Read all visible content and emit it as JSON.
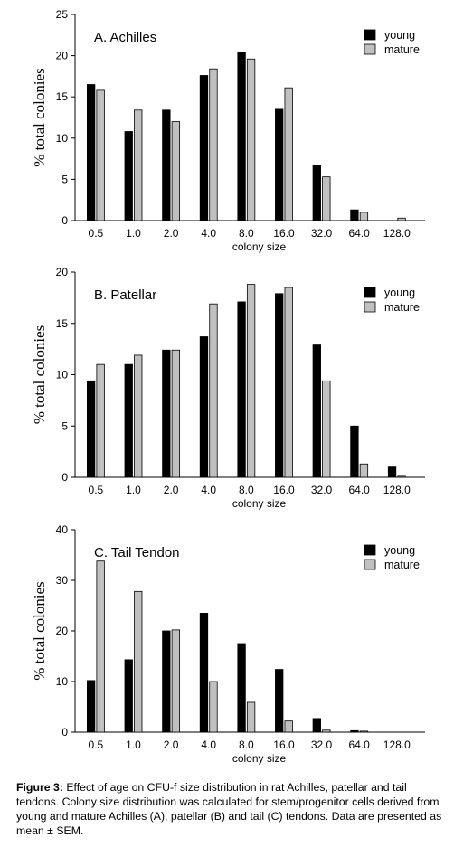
{
  "chart_data": [
    {
      "type": "bar",
      "title": "A. Achilles",
      "ylabel": "% total colonies",
      "xlabel": "colony size",
      "ylim": [
        0,
        25
      ],
      "yticks": [
        0,
        5,
        10,
        15,
        20,
        25
      ],
      "categories": [
        "0.5",
        "1.0",
        "2.0",
        "4.0",
        "8.0",
        "16.0",
        "32.0",
        "64.0",
        "128.0"
      ],
      "series": [
        {
          "name": "young",
          "color": "#000000",
          "values": [
            16.5,
            10.8,
            13.4,
            17.6,
            20.4,
            13.5,
            6.7,
            1.3,
            0
          ]
        },
        {
          "name": "mature",
          "color": "#c0c0c0",
          "values": [
            15.8,
            13.4,
            12.0,
            18.4,
            19.6,
            16.1,
            5.3,
            1.0,
            0.3
          ]
        }
      ],
      "legend": "top-right"
    },
    {
      "type": "bar",
      "title": "B. Patellar",
      "ylabel": "% total colonies",
      "xlabel": "colony size",
      "ylim": [
        0,
        20
      ],
      "yticks": [
        0,
        5,
        10,
        15,
        20
      ],
      "categories": [
        "0.5",
        "1.0",
        "2.0",
        "4.0",
        "8.0",
        "16.0",
        "32.0",
        "64.0",
        "128.0"
      ],
      "series": [
        {
          "name": "young",
          "color": "#000000",
          "values": [
            9.4,
            11.0,
            12.4,
            13.7,
            17.1,
            17.9,
            12.9,
            5.0,
            1.0
          ]
        },
        {
          "name": "mature",
          "color": "#c0c0c0",
          "values": [
            11.0,
            11.9,
            12.4,
            16.9,
            18.8,
            18.5,
            9.4,
            1.3,
            0.1
          ]
        }
      ],
      "legend": "top-right"
    },
    {
      "type": "bar",
      "title": "C. Tail Tendon",
      "ylabel": "% total colonies",
      "xlabel": "colony size",
      "ylim": [
        0,
        40
      ],
      "yticks": [
        0,
        10,
        20,
        30,
        40
      ],
      "categories": [
        "0.5",
        "1.0",
        "2.0",
        "4.0",
        "8.0",
        "16.0",
        "32.0",
        "64.0",
        "128.0"
      ],
      "series": [
        {
          "name": "young",
          "color": "#000000",
          "values": [
            10.2,
            14.3,
            20.0,
            23.5,
            17.5,
            12.4,
            2.7,
            0.3,
            0
          ]
        },
        {
          "name": "mature",
          "color": "#c0c0c0",
          "values": [
            33.8,
            27.8,
            20.2,
            10.0,
            5.9,
            2.2,
            0.4,
            0.2,
            0
          ]
        }
      ],
      "legend": "top-right"
    }
  ],
  "caption": {
    "label": "Figure 3:",
    "text": " Effect of age on CFU-f size distribution in rat Achilles, patellar and tail tendons. Colony size distribution was calculated for stem/progenitor cells derived from young and mature Achilles (A), patellar (B) and tail (C) tendons. Data are presented as mean ± SEM."
  }
}
